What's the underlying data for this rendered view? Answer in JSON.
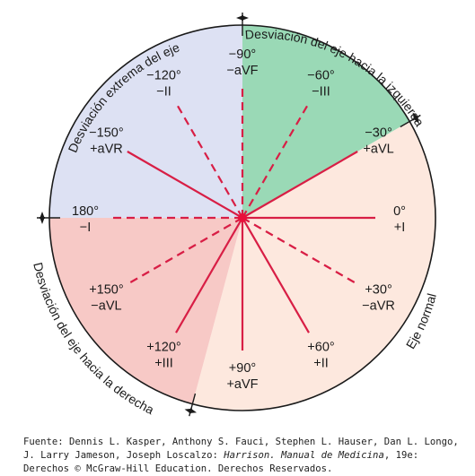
{
  "regions": [
    {
      "label": "Desviación extrema del eje",
      "color": "#dde1f3",
      "from_deg": -180,
      "to_deg": -90
    },
    {
      "label": "Desviación del eje hacia la izquierda",
      "color": "#9ad9b6",
      "from_deg": -90,
      "to_deg": -30
    },
    {
      "label": "Eje normal",
      "color": "#fde8de",
      "from_deg": -30,
      "to_deg": 105
    },
    {
      "label": "Desviación del eje hacia la derecha",
      "color": "#f7c9c6",
      "from_deg": 105,
      "to_deg": 180
    }
  ],
  "leads": [
    {
      "angle": 0,
      "deg_label": "0°",
      "lead": "+I",
      "dashed": false
    },
    {
      "angle": 30,
      "deg_label": "+30°",
      "lead": "−aVR",
      "dashed": true
    },
    {
      "angle": 60,
      "deg_label": "+60°",
      "lead": "+II",
      "dashed": false
    },
    {
      "angle": 90,
      "deg_label": "+90°",
      "lead": "+aVF",
      "dashed": false
    },
    {
      "angle": 120,
      "deg_label": "+120°",
      "lead": "+III",
      "dashed": false
    },
    {
      "angle": 150,
      "deg_label": "+150°",
      "lead": "−aVL",
      "dashed": true
    },
    {
      "angle": 180,
      "deg_label": "180°",
      "lead": "−I",
      "dashed": true
    },
    {
      "angle": -150,
      "deg_label": "−150°",
      "lead": "+aVR",
      "dashed": false
    },
    {
      "angle": -120,
      "deg_label": "−120°",
      "lead": "−II",
      "dashed": true
    },
    {
      "angle": -90,
      "deg_label": "−90°",
      "lead": "−aVF",
      "dashed": true
    },
    {
      "angle": -60,
      "deg_label": "−60°",
      "lead": "−III",
      "dashed": true
    },
    {
      "angle": -30,
      "deg_label": "−30°",
      "lead": "+aVL",
      "dashed": false
    }
  ],
  "center_color": "#e8103a",
  "line_color": "#d81e45",
  "caption": {
    "prefix": "Fuente: Dennis L. Kasper, Anthony S. Fauci, Stephen L. Hauser, Dan L. Longo, J. Larry Jameson, Joseph Loscalzo: ",
    "book": "Harrison. Manual de Medicina",
    "suffix": ", 19e: Derechos © McGraw-Hill Education. Derechos Reservados."
  }
}
